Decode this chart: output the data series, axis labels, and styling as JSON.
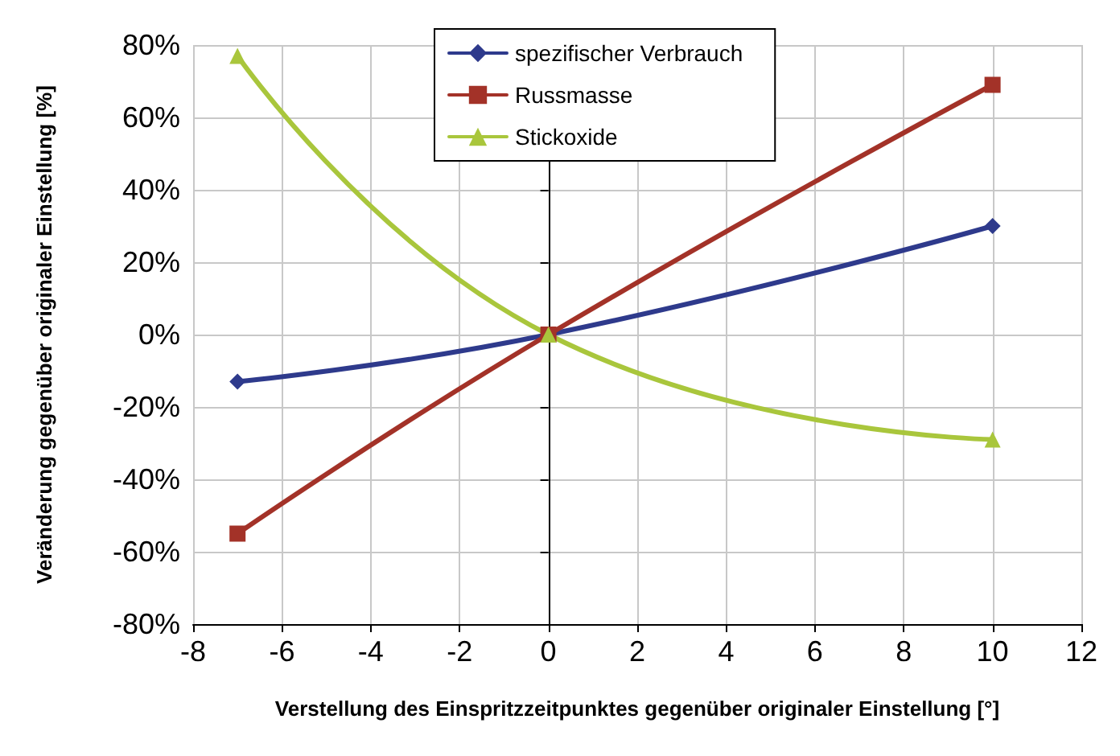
{
  "chart_data": {
    "type": "line",
    "xlabel": "Verstellung des Einspritzzeitpunktes gegenüber originaler Einstellung [°]",
    "ylabel": "Veränderung gegenüber originaler Einstellung [%]",
    "x": [
      -7,
      0,
      10
    ],
    "series": [
      {
        "name": "spezifischer Verbrauch",
        "color": "#2e3a8c",
        "marker": "diamond",
        "values": [
          -13,
          0,
          30
        ]
      },
      {
        "name": "Russmasse",
        "color": "#a33228",
        "marker": "square",
        "values": [
          -55,
          0,
          69
        ]
      },
      {
        "name": "Stickoxide",
        "color": "#a9c63c",
        "marker": "triangle",
        "values": [
          77,
          0,
          -29
        ]
      }
    ],
    "xlim": [
      -8,
      12
    ],
    "xticks": [
      -8,
      -6,
      -4,
      -2,
      0,
      2,
      4,
      6,
      8,
      10,
      12
    ],
    "ylim": [
      -80,
      80
    ],
    "yticks": [
      {
        "value": -80,
        "label": "-80%"
      },
      {
        "value": -60,
        "label": "-60%"
      },
      {
        "value": -40,
        "label": "-40%"
      },
      {
        "value": -20,
        "label": "-20%"
      },
      {
        "value": 0,
        "label": "0%"
      },
      {
        "value": 20,
        "label": "20%"
      },
      {
        "value": 40,
        "label": "40%"
      },
      {
        "value": 60,
        "label": "60%"
      },
      {
        "value": 80,
        "label": "80%"
      }
    ],
    "grid": true,
    "legend": "top",
    "line_style": "solid"
  }
}
